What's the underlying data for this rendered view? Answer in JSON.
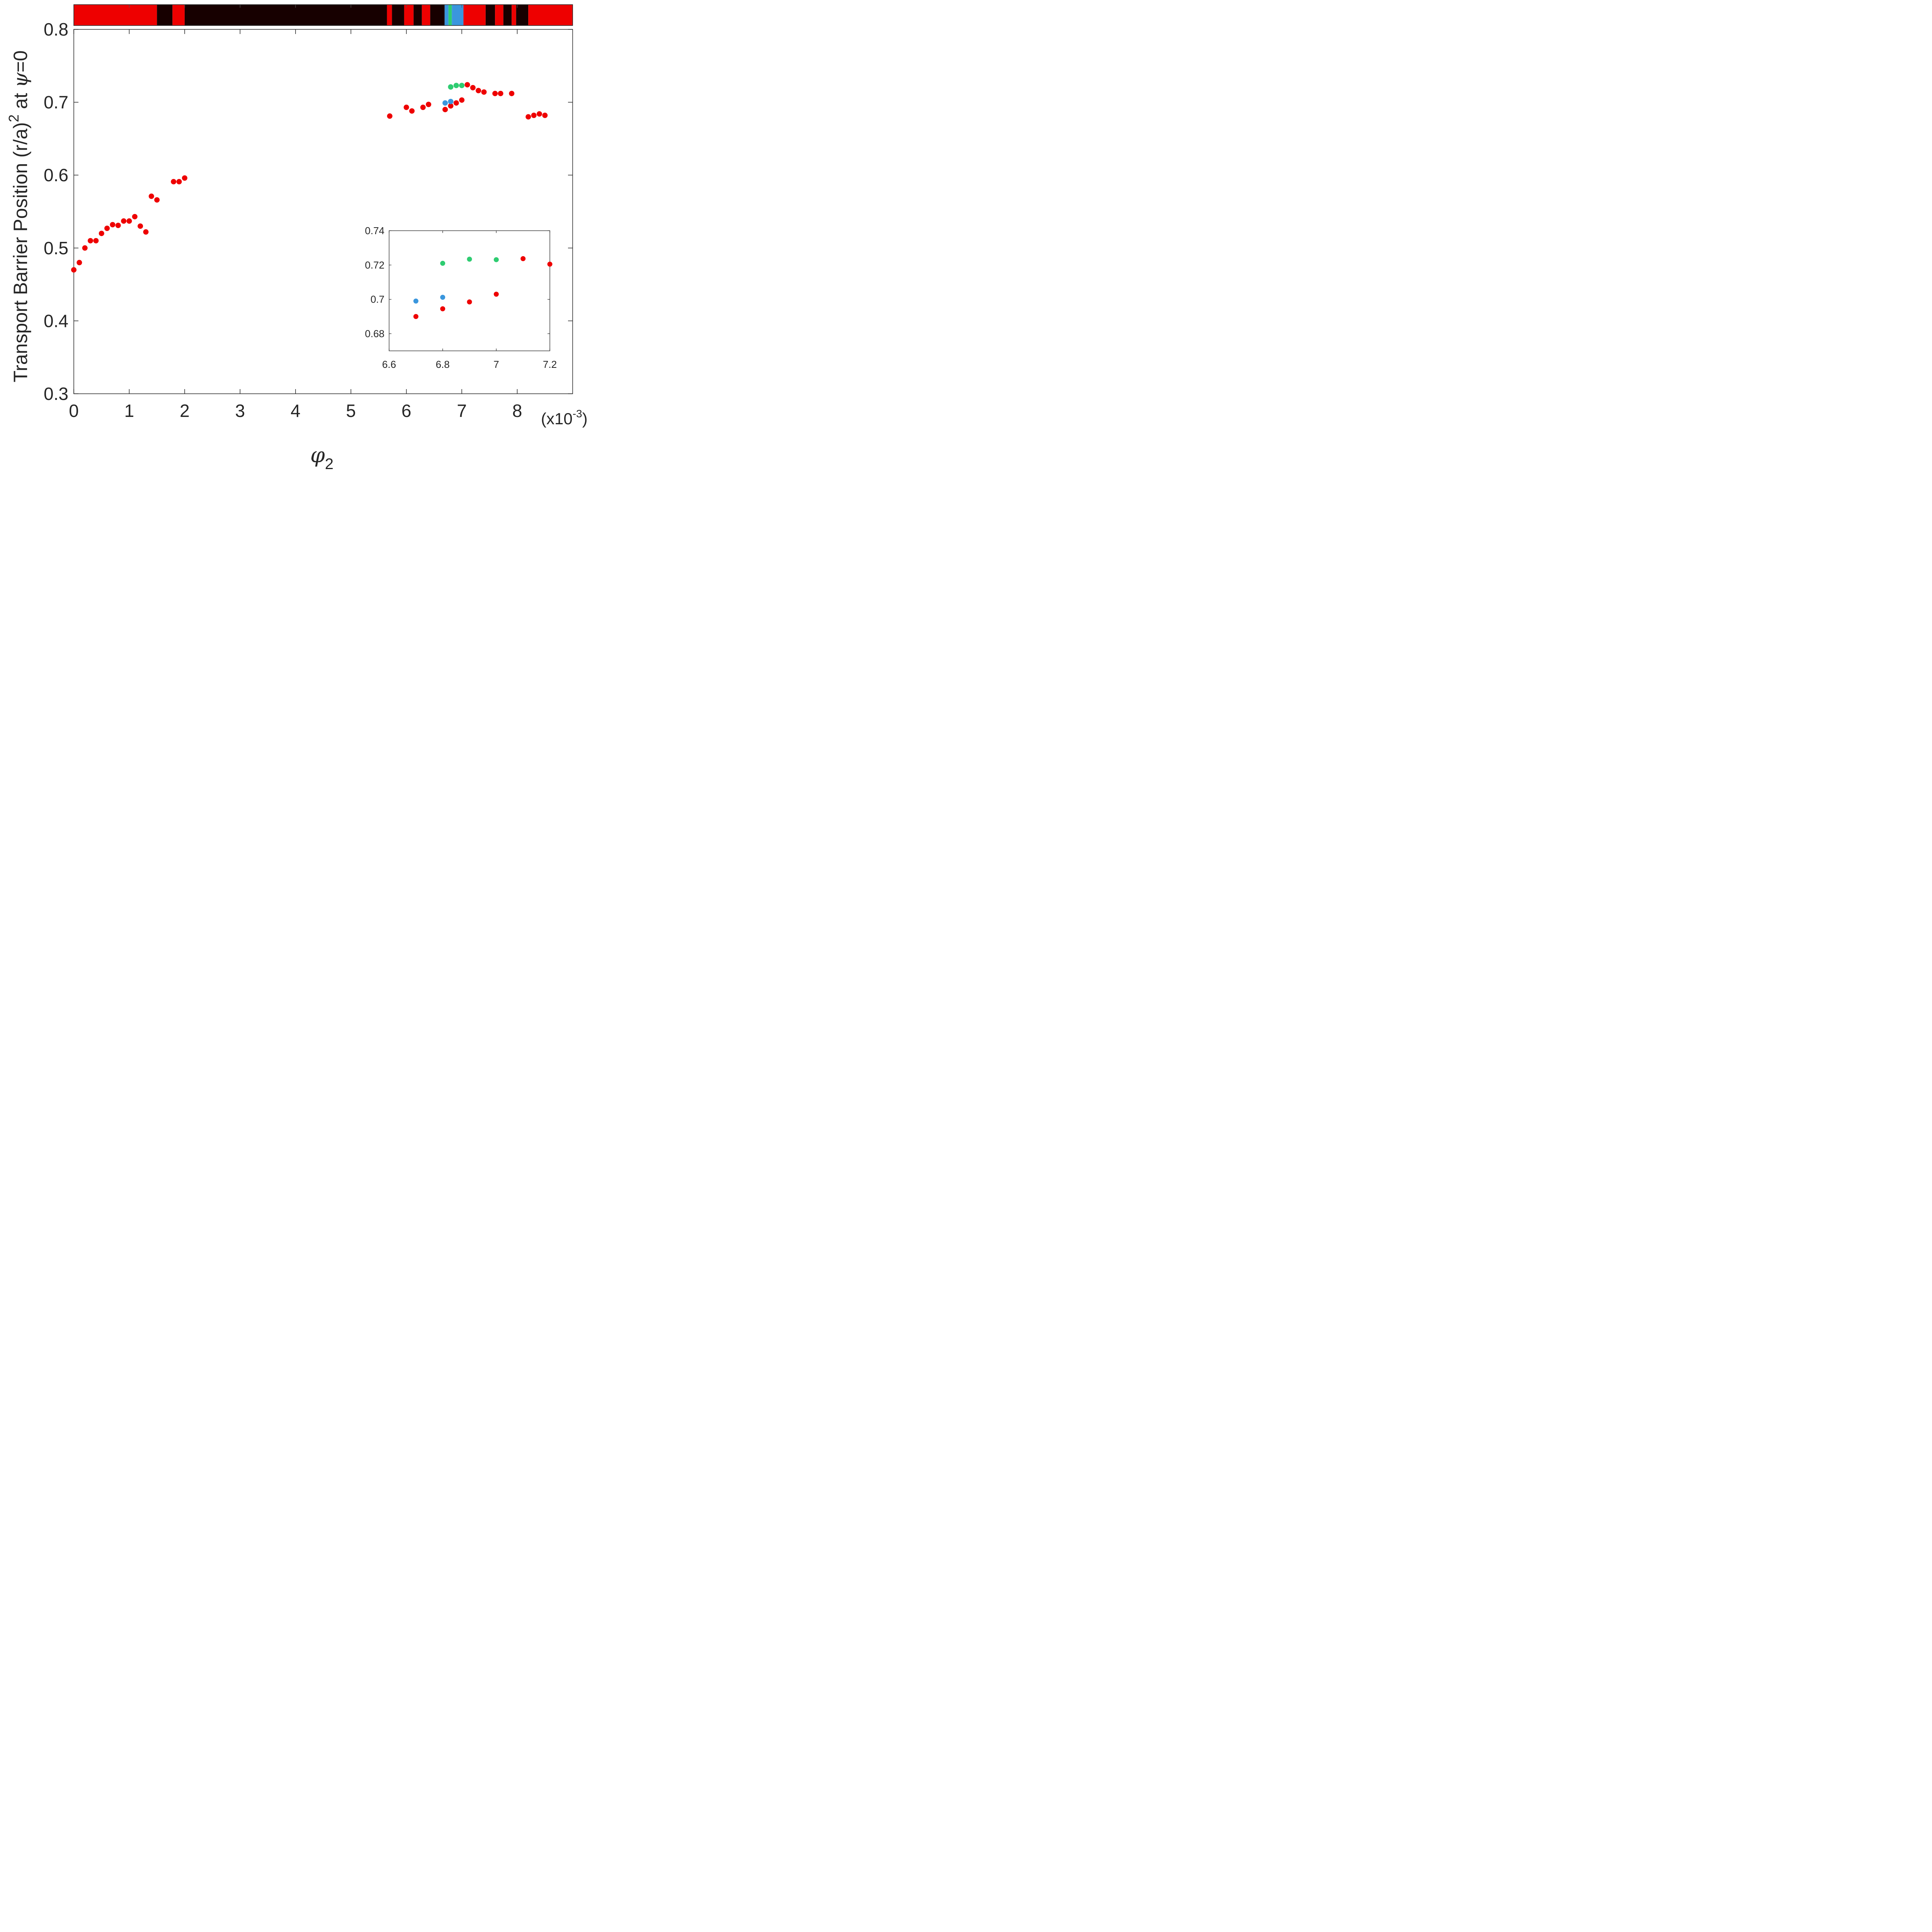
{
  "chart_data": [
    {
      "type": "scatter",
      "role": "main",
      "title": "",
      "xlabel_symbol": "φ",
      "xlabel_subscript": "2",
      "ylabel_text": "Transport Barrier Position (r/a)",
      "ylabel_sup": "2",
      "ylabel_at": " at ",
      "ylabel_symbol": "ψ",
      "ylabel_eq": "=0",
      "x_multiplier_prefix": "(x10",
      "x_multiplier_exp": "-3",
      "x_multiplier_suffix": ")",
      "xlim": [
        0,
        9.0
      ],
      "ylim": [
        0.3,
        0.8
      ],
      "xticks": [
        0,
        1,
        2,
        3,
        4,
        5,
        6,
        7,
        8
      ],
      "yticks": [
        0.3,
        0.4,
        0.5,
        0.6,
        0.7,
        0.8
      ],
      "xtick_labels": [
        "0",
        "1",
        "2",
        "3",
        "4",
        "5",
        "6",
        "7",
        "8"
      ],
      "ytick_labels": [
        "0.3",
        "0.4",
        "0.5",
        "0.6",
        "0.7",
        "0.8"
      ],
      "grid": false,
      "series": [
        {
          "color": "#ee0000",
          "points": [
            [
              0.0,
              0.47
            ],
            [
              0.1,
              0.48
            ],
            [
              0.2,
              0.5
            ],
            [
              0.3,
              0.51
            ],
            [
              0.4,
              0.51
            ],
            [
              0.5,
              0.52
            ],
            [
              0.6,
              0.527
            ],
            [
              0.7,
              0.532
            ],
            [
              0.8,
              0.531
            ],
            [
              0.9,
              0.537
            ],
            [
              1.0,
              0.537
            ],
            [
              1.1,
              0.543
            ],
            [
              1.2,
              0.53
            ],
            [
              1.3,
              0.522
            ],
            [
              1.4,
              0.571
            ],
            [
              1.5,
              0.566
            ],
            [
              1.8,
              0.591
            ],
            [
              1.9,
              0.591
            ],
            [
              2.0,
              0.596
            ],
            [
              5.7,
              0.681
            ],
            [
              6.0,
              0.693
            ],
            [
              6.1,
              0.688
            ],
            [
              6.3,
              0.693
            ],
            [
              6.4,
              0.697
            ],
            [
              6.7,
              0.69
            ],
            [
              6.8,
              0.695
            ],
            [
              6.9,
              0.699
            ],
            [
              7.0,
              0.703
            ],
            [
              7.1,
              0.724
            ],
            [
              7.2,
              0.72
            ],
            [
              7.3,
              0.716
            ],
            [
              7.4,
              0.714
            ],
            [
              7.6,
              0.712
            ],
            [
              7.7,
              0.712
            ],
            [
              7.9,
              0.712
            ],
            [
              8.2,
              0.68
            ],
            [
              8.3,
              0.682
            ],
            [
              8.4,
              0.684
            ],
            [
              8.5,
              0.682
            ]
          ]
        },
        {
          "color": "#3a96dd",
          "points": [
            [
              6.7,
              0.699
            ],
            [
              6.8,
              0.701
            ]
          ]
        },
        {
          "color": "#2ecc71",
          "points": [
            [
              6.8,
              0.721
            ],
            [
              6.9,
              0.723
            ],
            [
              7.0,
              0.723
            ]
          ]
        }
      ]
    },
    {
      "type": "scatter",
      "role": "inset",
      "xlim": [
        6.6,
        7.2
      ],
      "ylim": [
        0.67,
        0.74
      ],
      "xticks": [
        6.6,
        6.8,
        7.0,
        7.2
      ],
      "yticks": [
        0.68,
        0.7,
        0.72,
        0.74
      ],
      "xtick_labels": [
        "6.6",
        "6.8",
        "7",
        "7.2"
      ],
      "ytick_labels": [
        "0.68",
        "0.7",
        "0.72",
        "0.74"
      ],
      "grid": false,
      "series": [
        {
          "color": "#ee0000",
          "points": [
            [
              6.7,
              0.69
            ],
            [
              6.8,
              0.6945
            ],
            [
              6.9,
              0.6985
            ],
            [
              7.0,
              0.703
            ],
            [
              7.1,
              0.7237
            ],
            [
              7.2,
              0.7205
            ]
          ]
        },
        {
          "color": "#3a96dd",
          "points": [
            [
              6.7,
              0.699
            ],
            [
              6.8,
              0.7012
            ]
          ]
        },
        {
          "color": "#2ecc71",
          "points": [
            [
              6.8,
              0.721
            ],
            [
              6.9,
              0.7234
            ],
            [
              7.0,
              0.7231
            ]
          ]
        }
      ]
    },
    {
      "type": "heatmap",
      "role": "top-strip",
      "xlim": [
        0,
        9.0
      ],
      "segments": [
        {
          "x0": 0.0,
          "x1": 1.5,
          "color": "#ee0000"
        },
        {
          "x0": 1.5,
          "x1": 1.78,
          "color": "#170000"
        },
        {
          "x0": 1.78,
          "x1": 2.0,
          "color": "#ee0000"
        },
        {
          "x0": 2.0,
          "x1": 5.65,
          "color": "#170000"
        },
        {
          "x0": 5.65,
          "x1": 5.74,
          "color": "#ee0000"
        },
        {
          "x0": 5.74,
          "x1": 5.96,
          "color": "#170000"
        },
        {
          "x0": 5.96,
          "x1": 6.13,
          "color": "#ee0000"
        },
        {
          "x0": 6.13,
          "x1": 6.28,
          "color": "#170000"
        },
        {
          "x0": 6.28,
          "x1": 6.43,
          "color": "#ee0000"
        },
        {
          "x0": 6.43,
          "x1": 6.69,
          "color": "#170000"
        },
        {
          "x0": 6.69,
          "x1": 6.76,
          "color": "#3a96dd"
        },
        {
          "x0": 6.76,
          "x1": 6.82,
          "color": "#2ecc71"
        },
        {
          "x0": 6.82,
          "x1": 7.03,
          "color": "#3a96dd"
        },
        {
          "x0": 7.03,
          "x1": 7.43,
          "color": "#ee0000"
        },
        {
          "x0": 7.43,
          "x1": 7.6,
          "color": "#170000"
        },
        {
          "x0": 7.6,
          "x1": 7.75,
          "color": "#ee0000"
        },
        {
          "x0": 7.75,
          "x1": 7.9,
          "color": "#170000"
        },
        {
          "x0": 7.9,
          "x1": 7.98,
          "color": "#ee0000"
        },
        {
          "x0": 7.98,
          "x1": 8.2,
          "color": "#170000"
        },
        {
          "x0": 8.2,
          "x1": 9.0,
          "color": "#ee0000"
        }
      ]
    }
  ]
}
